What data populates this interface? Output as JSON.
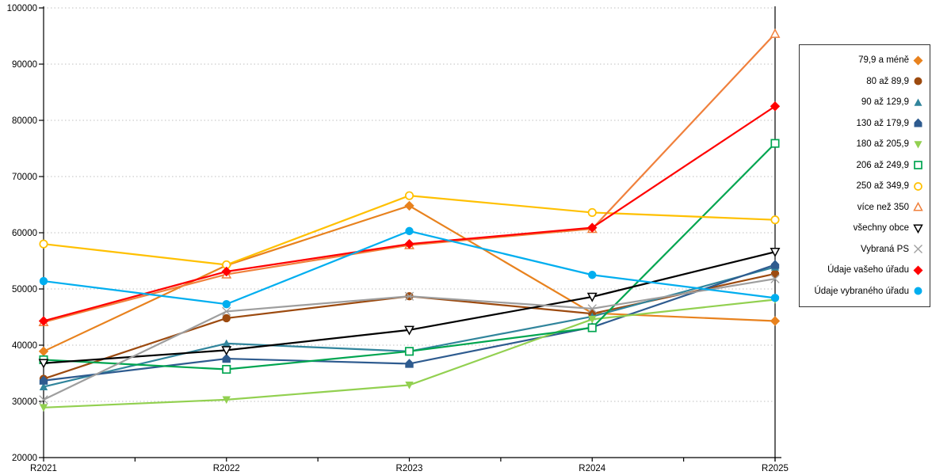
{
  "chart_data": {
    "type": "line",
    "title": "",
    "xlabel": "",
    "ylabel": "",
    "categories": [
      "R2021",
      "R2022",
      "R2023",
      "R2024",
      "R2025"
    ],
    "ylim": [
      20000,
      100000
    ],
    "ytick_step": 10000,
    "grid": "horizontal-dotted",
    "legend_position": "right",
    "axis_color": "#000000",
    "gridline_color": "#bfbfbf",
    "series": [
      {
        "name": "79,9 a méně",
        "color": "#e8821e",
        "marker": "diamond",
        "values": [
          38900,
          54200,
          64800,
          45700,
          44300
        ]
      },
      {
        "name": "80 až 89,9",
        "color": "#9c4a0f",
        "marker": "circle",
        "values": [
          34000,
          44800,
          48700,
          45600,
          52700
        ]
      },
      {
        "name": "90 až 129,9",
        "color": "#31859c",
        "marker": "triangle",
        "values": [
          32600,
          40300,
          38900,
          45100,
          53900
        ]
      },
      {
        "name": "130 až 179,9",
        "color": "#2e5b8f",
        "marker": "pentagon",
        "values": [
          33700,
          37600,
          36700,
          43200,
          54300
        ]
      },
      {
        "name": "180 až 205,9",
        "color": "#92d050",
        "marker": "triangle-down",
        "values": [
          28900,
          30300,
          32900,
          44600,
          48100
        ]
      },
      {
        "name": "206 až 249,9",
        "color": "#00a550",
        "marker": "square-open",
        "values": [
          37400,
          35700,
          38900,
          43100,
          75900
        ]
      },
      {
        "name": "250 až 349,9",
        "color": "#ffc000",
        "marker": "circle-open",
        "values": [
          58000,
          54300,
          66600,
          63600,
          62300
        ]
      },
      {
        "name": "více než 350",
        "color": "#f0803c",
        "marker": "triangle-open",
        "values": [
          44100,
          52600,
          57800,
          60700,
          95400
        ]
      },
      {
        "name": "všechny obce",
        "color": "#000000",
        "marker": "triangle-down-open",
        "values": [
          36800,
          39100,
          42700,
          48600,
          56600
        ]
      },
      {
        "name": "Vybraná PS",
        "color": "#9e9e9e",
        "marker": "x",
        "values": [
          30300,
          46000,
          48700,
          46500,
          51800
        ]
      },
      {
        "name": "Údaje vašeho úřadu",
        "color": "#ff0000",
        "marker": "diamond",
        "values": [
          44300,
          53100,
          58000,
          60900,
          82500
        ]
      },
      {
        "name": "Údaje vybraného úřadu",
        "color": "#00aeef",
        "marker": "circle",
        "values": [
          51400,
          47300,
          60300,
          52500,
          48400
        ]
      }
    ]
  }
}
